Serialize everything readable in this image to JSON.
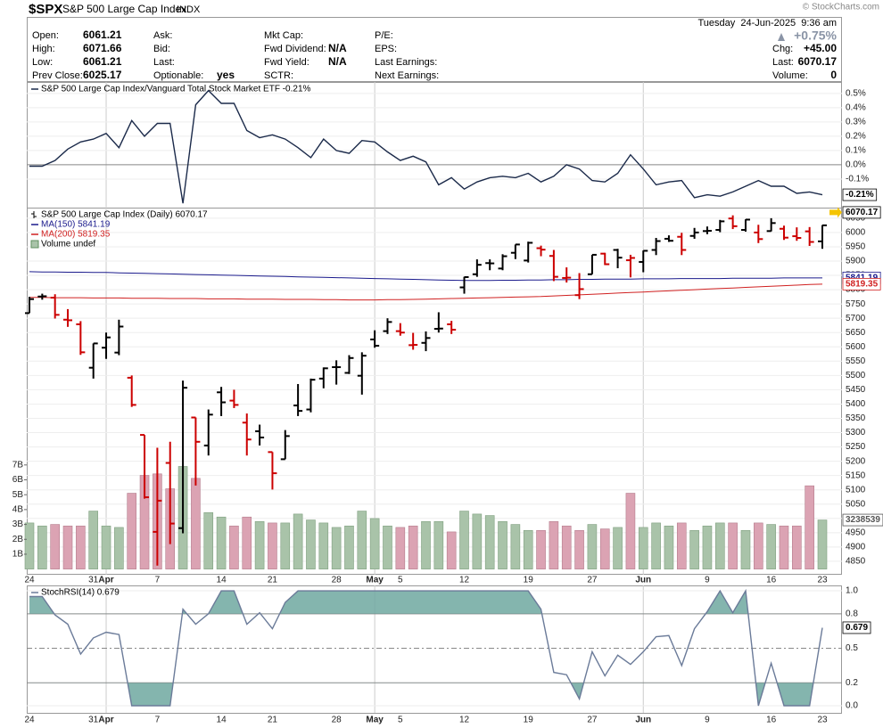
{
  "header": {
    "symbol": "$SPX",
    "name": "S&P 500 Large Cap Index",
    "exchange": "INDX",
    "copyright": "© StockCharts.com",
    "timestamp": "Tuesday  24-Jun-2025  9:36 am",
    "change_pct": "+0.75%",
    "quote": [
      [
        {
          "label": "Open:",
          "value": "6061.21"
        },
        {
          "label": "High:",
          "value": "6071.66"
        },
        {
          "label": "Low:",
          "value": "6061.21"
        },
        {
          "label": "Prev Close:",
          "value": "6025.17"
        }
      ],
      [
        {
          "label": "Ask:"
        },
        {
          "label": "Bid:"
        },
        {
          "label": "Last:"
        },
        {
          "label": "Optionable:",
          "value": "yes"
        }
      ],
      [
        {
          "label": "Mkt Cap:"
        },
        {
          "label": "Fwd Dividend:",
          "value": "N/A"
        },
        {
          "label": "Fwd Yield:",
          "value": "N/A"
        },
        {
          "label": "SCTR:"
        }
      ],
      [
        {
          "label": "P/E:"
        },
        {
          "label": "EPS:"
        },
        {
          "label": "Last Earnings:"
        },
        {
          "label": "Next Earnings:"
        }
      ]
    ],
    "summary": [
      {
        "label": "Chg:",
        "value": "+45.00"
      },
      {
        "label": "Last:",
        "value": "6070.17"
      },
      {
        "label": "Volume:",
        "value": "0"
      }
    ]
  },
  "chart_data": [
    {
      "type": "line",
      "series": [
        {
          "name": "S&P 500 Large Cap Index/Vanguard Total Stock Market ETF -0.21%",
          "color": "#1b2a4a",
          "values": [
            -0.01,
            -0.01,
            0.03,
            0.11,
            0.16,
            0.18,
            0.22,
            0.12,
            0.31,
            0.2,
            0.29,
            0.29,
            -0.27,
            0.42,
            0.52,
            0.43,
            0.43,
            0.24,
            0.19,
            0.21,
            0.18,
            0.12,
            0.05,
            0.18,
            0.1,
            0.08,
            0.17,
            0.16,
            0.09,
            0.03,
            0.06,
            0.02,
            -0.14,
            -0.09,
            -0.17,
            -0.12,
            -0.09,
            -0.08,
            -0.09,
            -0.06,
            -0.12,
            -0.08,
            0.0,
            -0.03,
            -0.11,
            -0.12,
            -0.06,
            0.07,
            -0.03,
            -0.14,
            -0.12,
            -0.11,
            -0.23,
            -0.21,
            -0.22,
            -0.19,
            -0.15,
            -0.11,
            -0.15,
            -0.15,
            -0.2,
            -0.19,
            -0.21
          ]
        }
      ],
      "last_label": "-0.21%",
      "ylim": [
        -0.3,
        0.58
      ],
      "yticks": [
        {
          "value": 0.5,
          "label": "0.5%"
        },
        {
          "value": 0.4,
          "label": "0.4%"
        },
        {
          "value": 0.3,
          "label": "0.3%"
        },
        {
          "value": 0.2,
          "label": "0.2%"
        },
        {
          "value": 0.1,
          "label": "0.1%"
        },
        {
          "value": 0,
          "label": "0.0%"
        },
        {
          "value": -0.1,
          "label": "-0.1%"
        }
      ],
      "grid": true,
      "zero_line": true
    },
    {
      "type": "ohlc",
      "title": "S&P 500 Large Cap Index (Daily) 6070.17",
      "categories": [
        "24",
        null,
        null,
        null,
        null,
        "31",
        "Apr",
        null,
        null,
        null,
        "7",
        null,
        null,
        null,
        null,
        "14",
        null,
        null,
        null,
        "21",
        null,
        null,
        null,
        null,
        "28",
        null,
        null,
        "May",
        null,
        "5",
        null,
        null,
        null,
        null,
        "12",
        null,
        null,
        null,
        null,
        "19",
        null,
        null,
        null,
        null,
        "27",
        null,
        null,
        null,
        "Jun",
        null,
        null,
        null,
        null,
        "9",
        null,
        null,
        null,
        null,
        "16",
        null,
        null,
        null,
        "23"
      ],
      "open": [
        5718,
        5776,
        5772,
        5695,
        5679,
        5527,
        5597,
        5580,
        5492,
        5292,
        4953,
        5194,
        4966,
        5353,
        5255,
        5441,
        5412,
        5335,
        5305,
        5232,
        5207,
        5395,
        5381,
        5489,
        5529,
        5509,
        5499,
        5626,
        5655,
        5655,
        5606,
        5614,
        5663,
        5679,
        5808,
        5854,
        5893,
        5874,
        5929,
        5902,
        5945,
        5918,
        5841,
        5781,
        5854,
        5926,
        5939,
        5903,
        5897,
        5939,
        5978,
        5985,
        5988,
        6005,
        6009,
        6049,
        6009,
        6000,
        6005,
        6013,
        5987,
        6004,
        5969
      ],
      "high": [
        5775,
        5786,
        5784,
        5732,
        5690,
        5612,
        5650,
        5695,
        5500,
        5292,
        5247,
        5268,
        5482,
        5353,
        5381,
        5460,
        5450,
        5367,
        5328,
        5232,
        5309,
        5470,
        5489,
        5528,
        5553,
        5571,
        5581,
        5658,
        5700,
        5683,
        5649,
        5654,
        5721,
        5691,
        5845,
        5906,
        5906,
        5924,
        5958,
        5968,
        5954,
        5939,
        5878,
        5858,
        5922,
        5929,
        5943,
        5922,
        5937,
        5981,
        5990,
        5999,
        6016,
        6021,
        6044,
        6060,
        6046,
        6027,
        6050,
        6024,
        6018,
        6019,
        6026
      ],
      "low": [
        5718,
        5765,
        5699,
        5670,
        5572,
        5489,
        5558,
        5571,
        5390,
        5069,
        4835,
        4910,
        4948,
        5115,
        5220,
        5358,
        5386,
        5220,
        5255,
        5101,
        5207,
        5358,
        5371,
        5455,
        5468,
        5505,
        5433,
        5597,
        5645,
        5639,
        5590,
        5585,
        5650,
        5645,
        5786,
        5845,
        5868,
        5868,
        5907,
        5895,
        5917,
        5830,
        5825,
        5767,
        5854,
        5886,
        5875,
        5843,
        5861,
        5921,
        5967,
        5921,
        5978,
        5994,
        6001,
        6012,
        6003,
        5963,
        6004,
        5974,
        5971,
        5953,
        5943
      ],
      "close": [
        5767,
        5777,
        5712,
        5693,
        5581,
        5612,
        5633,
        5671,
        5397,
        5074,
        5062,
        4982,
        5457,
        5268,
        5363,
        5406,
        5397,
        5276,
        5283,
        5158,
        5288,
        5376,
        5485,
        5525,
        5529,
        5561,
        5569,
        5604,
        5687,
        5650,
        5607,
        5631,
        5664,
        5660,
        5844,
        5887,
        5892,
        5917,
        5958,
        5964,
        5940,
        5845,
        5842,
        5802,
        5922,
        5889,
        5912,
        5911,
        5936,
        5970,
        5971,
        5939,
        6000,
        6006,
        6039,
        6022,
        6045,
        5977,
        6033,
        5982,
        5981,
        5967,
        6025
      ],
      "up_color": "#000000",
      "down_color": "#cc0000",
      "last": 6070.17,
      "last_color": "#f5c400",
      "ylim": [
        4803,
        6087
      ],
      "yticks": [
        4850,
        4900,
        4950,
        5000,
        5050,
        5100,
        5150,
        5200,
        5250,
        5300,
        5350,
        5400,
        5450,
        5500,
        5550,
        5600,
        5650,
        5700,
        5750,
        5800,
        5850,
        5900,
        5950,
        6000,
        6050
      ],
      "series": [
        {
          "name": "MA(150) 5841.19",
          "color": "#1a1a8c",
          "values": [
            5863,
            5862,
            5862,
            5861,
            5861,
            5860,
            5860,
            5859,
            5858,
            5857,
            5856,
            5855,
            5854,
            5853,
            5852,
            5851,
            5850,
            5849,
            5848,
            5847,
            5846,
            5845,
            5844,
            5843,
            5842,
            5841,
            5840,
            5839,
            5838,
            5837,
            5836,
            5835,
            5834,
            5833,
            5832,
            5832,
            5832,
            5833,
            5833,
            5834,
            5834,
            5835,
            5835,
            5836,
            5836,
            5837,
            5837,
            5837,
            5838,
            5838,
            5838,
            5839,
            5839,
            5839,
            5839,
            5840,
            5840,
            5840,
            5840,
            5841,
            5841,
            5841,
            5841.19
          ]
        },
        {
          "name": "MA(200) 5819.35",
          "color": "#d02020",
          "values": [
            5773,
            5773,
            5772,
            5772,
            5772,
            5771,
            5771,
            5771,
            5770,
            5770,
            5770,
            5769,
            5769,
            5769,
            5768,
            5768,
            5768,
            5767,
            5767,
            5767,
            5766,
            5766,
            5766,
            5765,
            5765,
            5764,
            5764,
            5764,
            5765,
            5765,
            5766,
            5767,
            5768,
            5769,
            5770,
            5771,
            5772,
            5773,
            5774,
            5775,
            5776,
            5778,
            5780,
            5782,
            5784,
            5786,
            5788,
            5790,
            5792,
            5794,
            5796,
            5798,
            5800,
            5802,
            5804,
            5806,
            5808,
            5810,
            5812,
            5814,
            5816,
            5818,
            5819.35
          ]
        }
      ],
      "volume": {
        "name": "Volume undef",
        "values": [
          3.1,
          2.9,
          3.0,
          2.9,
          2.9,
          3.9,
          2.9,
          2.8,
          5.1,
          6.3,
          6.4,
          5.4,
          6.9,
          6.1,
          3.8,
          3.5,
          2.9,
          3.5,
          3.2,
          3.1,
          3.1,
          3.7,
          3.3,
          3.1,
          2.8,
          2.9,
          3.9,
          3.4,
          2.9,
          2.8,
          2.9,
          3.2,
          3.2,
          2.5,
          3.9,
          3.7,
          3.6,
          3.2,
          3.0,
          2.6,
          2.6,
          3.2,
          2.9,
          2.6,
          3.0,
          2.7,
          2.8,
          5.1,
          2.8,
          3.1,
          2.9,
          3.1,
          2.6,
          2.9,
          3.1,
          3.1,
          2.6,
          3.1,
          3.0,
          2.9,
          2.9,
          5.6,
          3.3
        ],
        "last_label": "3238539",
        "up_color": "#a9c3a9",
        "down_color": "#dba3b3",
        "y2lim": [
          -0.38,
          24.3
        ],
        "y2ticks": [
          {
            "value": 1,
            "label": "1B"
          },
          {
            "value": 2,
            "label": "2B"
          },
          {
            "value": 3,
            "label": "3B"
          },
          {
            "value": 4,
            "label": "4B"
          },
          {
            "value": 5,
            "label": "5B"
          },
          {
            "value": 6,
            "label": "6B"
          },
          {
            "value": 7,
            "label": "7B"
          }
        ]
      }
    },
    {
      "type": "line",
      "series": [
        {
          "name": "StochRSI(14) 0.679",
          "color": "#6b7b99",
          "values": [
            0.95,
            0.95,
            0.79,
            0.71,
            0.45,
            0.59,
            0.64,
            0.62,
            0,
            0,
            0,
            0,
            0.84,
            0.71,
            0.8,
            1,
            1,
            0.71,
            0.81,
            0.67,
            0.9,
            1,
            1,
            1,
            1,
            1,
            1,
            1,
            1,
            1,
            1,
            1,
            1,
            1,
            1,
            1,
            1,
            1,
            1,
            1,
            0.84,
            0.29,
            0.27,
            0.06,
            0.47,
            0.26,
            0.44,
            0.36,
            0.47,
            0.6,
            0.61,
            0.35,
            0.67,
            0.82,
            1,
            0.81,
            1,
            0,
            0.37,
            0,
            0,
            0,
            0.679
          ]
        }
      ],
      "ylim": [
        -0.062,
        1.047
      ],
      "yticks": [
        {
          "value": 1,
          "label": "1.0"
        },
        0.8,
        0.5,
        0.2,
        {
          "value": 0,
          "label": "0.0"
        }
      ],
      "grid": true,
      "dashed_level": 0.5,
      "fill_above": 0.8,
      "fill_below": 0.2,
      "fill_color": "#6fa8a0"
    }
  ]
}
